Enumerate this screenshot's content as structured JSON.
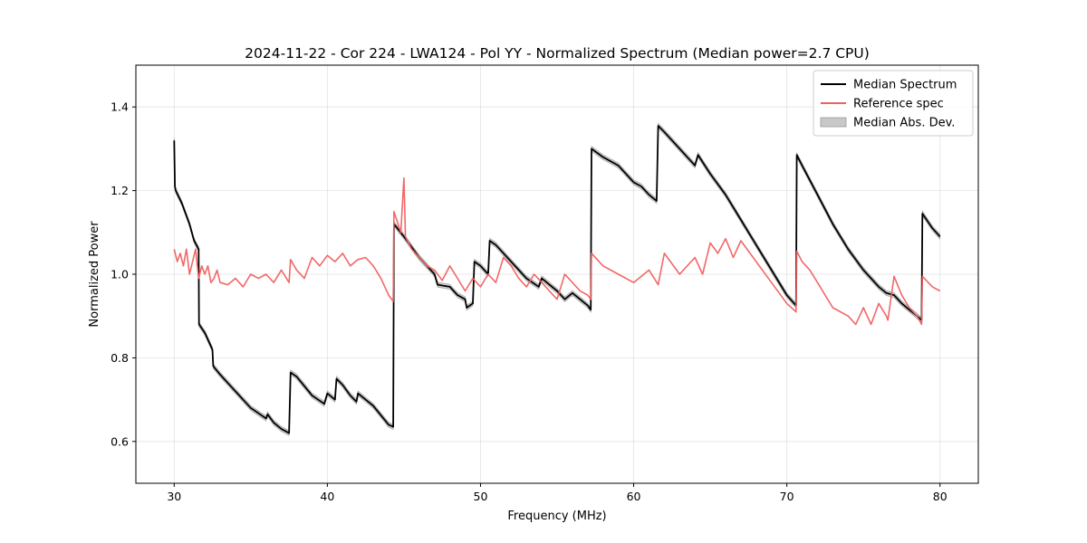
{
  "chart_data": {
    "type": "line",
    "title": "2024-11-22 - Cor 224 - LWA124 - Pol YY - Normalized Spectrum (Median power=2.7 CPU)",
    "xlabel": "Frequency (MHz)",
    "ylabel": "Normalized Power",
    "xlim": [
      27.5,
      82.5
    ],
    "ylim": [
      0.5,
      1.5
    ],
    "xticks": [
      30,
      40,
      50,
      60,
      70,
      80
    ],
    "yticks": [
      0.6,
      0.8,
      1.0,
      1.2,
      1.4
    ],
    "xtick_labels": [
      "30",
      "40",
      "50",
      "60",
      "70",
      "80"
    ],
    "ytick_labels": [
      "0.6",
      "0.8",
      "1.0",
      "1.2",
      "1.4"
    ],
    "grid": true,
    "legend_position": "top-right",
    "legend": [
      "Median Spectrum",
      "Reference spec",
      "Median Abs. Dev."
    ],
    "series": [
      {
        "name": "Median Spectrum",
        "color": "#000000",
        "x": [
          30.0,
          30.05,
          30.1,
          30.5,
          31.0,
          31.3,
          31.6,
          31.62,
          32.0,
          32.5,
          32.55,
          33.0,
          34.0,
          35.0,
          36.0,
          36.1,
          36.5,
          37.0,
          37.5,
          37.6,
          38.0,
          39.0,
          39.8,
          40.0,
          40.5,
          40.6,
          41.0,
          41.5,
          41.9,
          42.0,
          43.0,
          44.0,
          44.3,
          44.35,
          45.0,
          46.0,
          47.0,
          47.2,
          48.0,
          48.5,
          49.0,
          49.1,
          49.5,
          49.6,
          50.0,
          50.5,
          50.6,
          51.0,
          52.0,
          53.0,
          53.8,
          54.0,
          55.0,
          55.5,
          56.0,
          57.0,
          57.2,
          57.25,
          58.0,
          59.0,
          60.0,
          60.5,
          61.0,
          61.5,
          61.6,
          62.0,
          63.0,
          64.0,
          64.2,
          65.0,
          66.0,
          67.0,
          68.0,
          69.0,
          70.0,
          70.6,
          70.65,
          71.0,
          72.0,
          73.0,
          74.0,
          75.0,
          76.0,
          76.5,
          77.0,
          77.5,
          78.0,
          78.5,
          78.8,
          78.85,
          79.5,
          80.0
        ],
        "y": [
          1.32,
          1.21,
          1.2,
          1.17,
          1.12,
          1.08,
          1.06,
          0.88,
          0.86,
          0.82,
          0.78,
          0.76,
          0.72,
          0.68,
          0.655,
          0.665,
          0.645,
          0.63,
          0.62,
          0.765,
          0.755,
          0.71,
          0.69,
          0.715,
          0.7,
          0.75,
          0.735,
          0.71,
          0.695,
          0.715,
          0.685,
          0.64,
          0.635,
          1.12,
          1.09,
          1.04,
          1.0,
          0.975,
          0.97,
          0.95,
          0.94,
          0.92,
          0.93,
          1.03,
          1.02,
          1.0,
          1.08,
          1.07,
          1.03,
          0.99,
          0.97,
          0.99,
          0.96,
          0.94,
          0.955,
          0.925,
          0.915,
          1.3,
          1.28,
          1.26,
          1.22,
          1.21,
          1.19,
          1.175,
          1.355,
          1.34,
          1.3,
          1.26,
          1.285,
          1.24,
          1.19,
          1.13,
          1.07,
          1.01,
          0.95,
          0.925,
          1.285,
          1.26,
          1.19,
          1.12,
          1.06,
          1.01,
          0.97,
          0.955,
          0.95,
          0.93,
          0.915,
          0.9,
          0.89,
          1.145,
          1.11,
          1.09
        ]
      },
      {
        "name": "Reference spec",
        "color": "#f06060",
        "x": [
          30.0,
          30.2,
          30.4,
          30.6,
          30.8,
          31.0,
          31.2,
          31.4,
          31.6,
          31.8,
          32.0,
          32.2,
          32.4,
          32.6,
          32.8,
          33.0,
          33.5,
          34.0,
          34.5,
          35.0,
          35.5,
          36.0,
          36.5,
          37.0,
          37.5,
          37.6,
          38.0,
          38.5,
          39.0,
          39.5,
          40.0,
          40.5,
          41.0,
          41.5,
          42.0,
          42.5,
          43.0,
          43.5,
          44.0,
          44.3,
          44.35,
          44.8,
          45.0,
          45.1,
          45.5,
          46.0,
          46.5,
          47.0,
          47.5,
          48.0,
          48.5,
          49.0,
          49.5,
          50.0,
          50.5,
          51.0,
          51.5,
          52.0,
          52.5,
          53.0,
          53.5,
          54.0,
          54.5,
          55.0,
          55.5,
          56.0,
          56.5,
          57.0,
          57.2,
          57.25,
          58.0,
          59.0,
          60.0,
          61.0,
          61.6,
          62.0,
          63.0,
          64.0,
          64.5,
          65.0,
          65.5,
          66.0,
          66.5,
          67.0,
          68.0,
          69.0,
          70.0,
          70.6,
          70.65,
          71.0,
          71.5,
          72.0,
          73.0,
          74.0,
          74.5,
          75.0,
          75.5,
          76.0,
          76.5,
          76.6,
          77.0,
          77.5,
          78.0,
          78.5,
          78.8,
          78.85,
          79.5,
          80.0
        ],
        "y": [
          1.06,
          1.03,
          1.05,
          1.02,
          1.06,
          1.0,
          1.03,
          1.06,
          0.99,
          1.02,
          1.0,
          1.02,
          0.98,
          0.99,
          1.01,
          0.98,
          0.975,
          0.99,
          0.97,
          1.0,
          0.99,
          1.0,
          0.98,
          1.01,
          0.98,
          1.035,
          1.01,
          0.99,
          1.04,
          1.02,
          1.045,
          1.03,
          1.05,
          1.02,
          1.035,
          1.04,
          1.02,
          0.99,
          0.95,
          0.935,
          1.15,
          1.1,
          1.23,
          1.09,
          1.06,
          1.04,
          1.02,
          1.01,
          0.985,
          1.02,
          0.99,
          0.96,
          0.99,
          0.97,
          1.0,
          0.98,
          1.04,
          1.02,
          0.99,
          0.97,
          1.0,
          0.98,
          0.96,
          0.94,
          1.0,
          0.98,
          0.96,
          0.95,
          0.94,
          1.05,
          1.02,
          1.0,
          0.98,
          1.01,
          0.975,
          1.05,
          1.0,
          1.04,
          1.0,
          1.075,
          1.05,
          1.085,
          1.04,
          1.08,
          1.03,
          0.98,
          0.93,
          0.91,
          1.055,
          1.03,
          1.01,
          0.98,
          0.92,
          0.9,
          0.88,
          0.92,
          0.88,
          0.93,
          0.9,
          0.89,
          0.995,
          0.95,
          0.92,
          0.9,
          0.88,
          0.995,
          0.97,
          0.96
        ]
      },
      {
        "name": "Median Abs. Dev.",
        "color": "#c8c8c8",
        "type": "band",
        "halfwidth": 0.006
      }
    ]
  }
}
